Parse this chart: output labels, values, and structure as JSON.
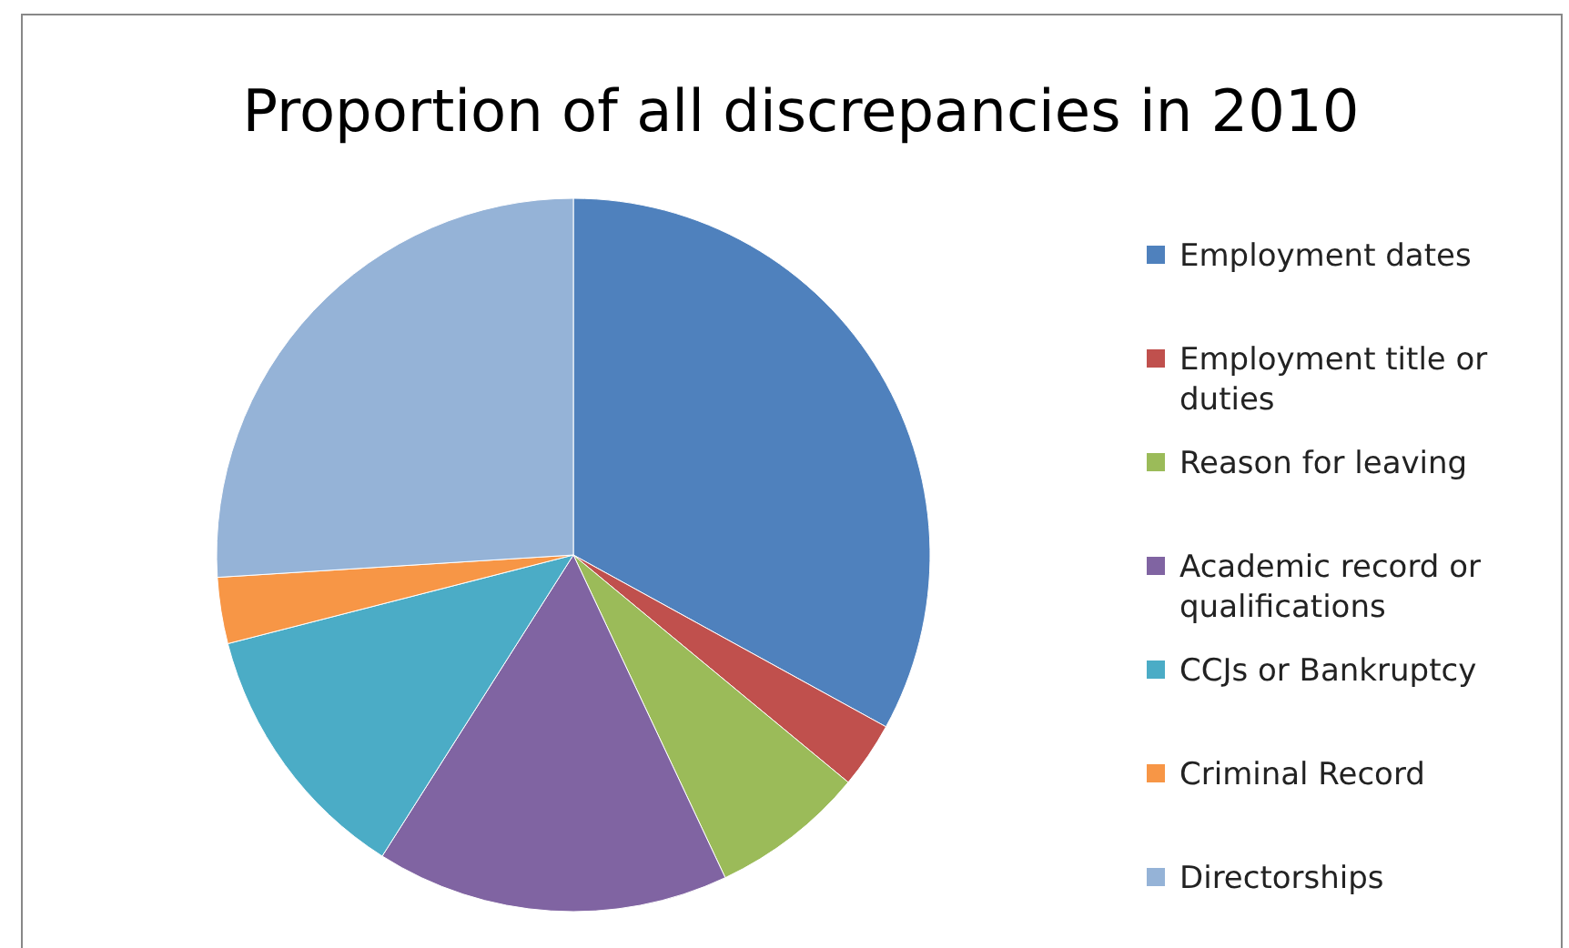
{
  "chart_data": {
    "type": "pie",
    "title": "Proportion of all discrepancies in 2010",
    "categories": [
      "Employment dates",
      "Employment title or duties",
      "Reason for leaving",
      "Academic record or qualifications",
      "CCJs or Bankruptcy",
      "Criminal Record",
      "Directorships"
    ],
    "values": [
      33,
      3,
      7,
      16,
      12,
      3,
      26
    ],
    "colors": [
      "#4f81bd",
      "#c0504d",
      "#9bbb59",
      "#8064a2",
      "#4bacc6",
      "#f79646",
      "#95b3d7"
    ],
    "legend": "right"
  }
}
